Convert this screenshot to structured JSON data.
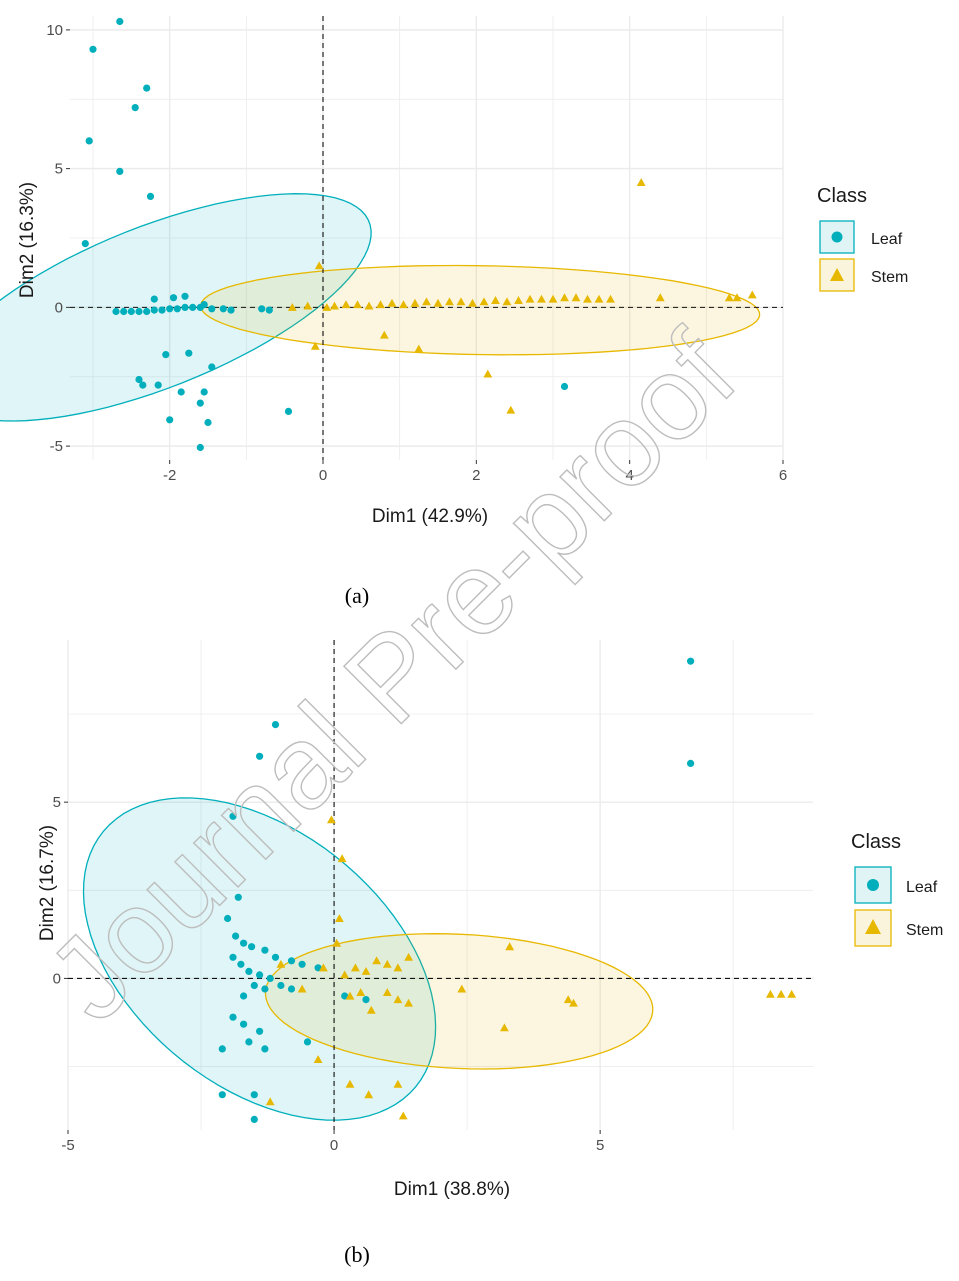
{
  "colors": {
    "leaf": "#00AFBB",
    "stem": "#E7B800",
    "grid": "#ebebeb",
    "axis_text": "#4d4d4d",
    "watermark": "#bdbdbd"
  },
  "watermark": "Journal Pre-proof",
  "legend_icons": {
    "leaf": "circle",
    "stem": "triangle"
  },
  "chart_data": [
    {
      "type": "scatter",
      "caption": "(a)",
      "xlabel": "Dim1 (42.9%)",
      "ylabel": "Dim2 (16.3%)",
      "xlim": [
        -3.3,
        6.0
      ],
      "ylim": [
        -5.5,
        10.5
      ],
      "xticks": [
        -2,
        0,
        2,
        4,
        6
      ],
      "yticks": [
        -5,
        0,
        5,
        10
      ],
      "grid": true,
      "legend_position": "right",
      "legend": {
        "title": "Class",
        "entries": [
          "Leaf",
          "Stem"
        ]
      },
      "series": [
        {
          "name": "Leaf",
          "marker": "circle",
          "ellipse": {
            "cx": -2.2,
            "cy": 0.0,
            "rx": 1.9,
            "ry": 4.6,
            "angle_deg": -30
          },
          "points": [
            [
              -2.65,
              10.3
            ],
            [
              -3.0,
              9.3
            ],
            [
              -2.3,
              7.9
            ],
            [
              -2.45,
              7.2
            ],
            [
              -3.05,
              6.0
            ],
            [
              -2.65,
              4.9
            ],
            [
              -2.25,
              4.0
            ],
            [
              -3.1,
              2.3
            ],
            [
              -2.7,
              -0.15
            ],
            [
              -2.6,
              -0.15
            ],
            [
              -2.5,
              -0.15
            ],
            [
              -2.4,
              -0.15
            ],
            [
              -2.3,
              -0.15
            ],
            [
              -2.2,
              -0.1
            ],
            [
              -2.1,
              -0.1
            ],
            [
              -2.0,
              -0.05
            ],
            [
              -1.9,
              -0.05
            ],
            [
              -1.8,
              0.0
            ],
            [
              -1.7,
              0.0
            ],
            [
              -1.6,
              0.0
            ],
            [
              -2.2,
              0.3
            ],
            [
              -1.95,
              0.35
            ],
            [
              -1.8,
              0.4
            ],
            [
              -1.55,
              0.1
            ],
            [
              -1.45,
              -0.05
            ],
            [
              -1.3,
              -0.05
            ],
            [
              -1.2,
              -0.1
            ],
            [
              -0.8,
              -0.05
            ],
            [
              -0.7,
              -0.1
            ],
            [
              -2.05,
              -1.7
            ],
            [
              -1.75,
              -1.65
            ],
            [
              -2.4,
              -2.6
            ],
            [
              -2.35,
              -2.8
            ],
            [
              -2.15,
              -2.8
            ],
            [
              -1.85,
              -3.05
            ],
            [
              -1.55,
              -3.05
            ],
            [
              -1.45,
              -2.15
            ],
            [
              -1.6,
              -3.45
            ],
            [
              -2.0,
              -4.05
            ],
            [
              -1.5,
              -4.15
            ],
            [
              -1.6,
              -5.05
            ],
            [
              -0.45,
              -3.75
            ],
            [
              3.15,
              -2.85
            ]
          ]
        },
        {
          "name": "Stem",
          "marker": "triangle",
          "ellipse": {
            "cx": 2.05,
            "cy": -0.1,
            "rx": 3.65,
            "ry": 1.6,
            "angle_deg": -3
          },
          "points": [
            [
              -0.05,
              1.5
            ],
            [
              -0.1,
              -1.4
            ],
            [
              -0.4,
              0.0
            ],
            [
              -0.2,
              0.05
            ],
            [
              0.05,
              0.0
            ],
            [
              0.15,
              0.05
            ],
            [
              0.3,
              0.1
            ],
            [
              0.45,
              0.1
            ],
            [
              0.6,
              0.05
            ],
            [
              0.75,
              0.1
            ],
            [
              0.9,
              0.15
            ],
            [
              1.05,
              0.1
            ],
            [
              1.2,
              0.15
            ],
            [
              1.35,
              0.2
            ],
            [
              1.5,
              0.15
            ],
            [
              1.65,
              0.2
            ],
            [
              1.8,
              0.2
            ],
            [
              1.95,
              0.15
            ],
            [
              2.1,
              0.2
            ],
            [
              2.25,
              0.25
            ],
            [
              2.4,
              0.2
            ],
            [
              2.55,
              0.25
            ],
            [
              2.7,
              0.3
            ],
            [
              2.85,
              0.3
            ],
            [
              3.0,
              0.3
            ],
            [
              3.15,
              0.35
            ],
            [
              3.3,
              0.35
            ],
            [
              3.45,
              0.3
            ],
            [
              3.6,
              0.3
            ],
            [
              3.75,
              0.3
            ],
            [
              4.4,
              0.35
            ],
            [
              5.3,
              0.35
            ],
            [
              5.4,
              0.35
            ],
            [
              5.6,
              0.45
            ],
            [
              4.15,
              4.5
            ],
            [
              0.8,
              -1.0
            ],
            [
              1.25,
              -1.5
            ],
            [
              2.15,
              -2.4
            ],
            [
              2.45,
              -3.7
            ]
          ]
        }
      ]
    },
    {
      "type": "scatter",
      "caption": "(b)",
      "xlabel": "Dim1 (38.8%)",
      "ylabel": "Dim2 (16.7%)",
      "xlim": [
        -5.0,
        9.0
      ],
      "ylim": [
        -4.3,
        9.6
      ],
      "xticks": [
        -5,
        0,
        5
      ],
      "yticks": [
        0,
        5
      ],
      "grid": true,
      "legend_position": "right",
      "legend": {
        "title": "Class",
        "entries": [
          "Leaf",
          "Stem"
        ]
      },
      "series": [
        {
          "name": "Leaf",
          "marker": "circle",
          "ellipse": {
            "cx": -1.4,
            "cy": 0.55,
            "rx": 2.8,
            "ry": 4.9,
            "angle_deg": 26
          },
          "points": [
            [
              6.7,
              9.0
            ],
            [
              6.7,
              6.1
            ],
            [
              -1.1,
              7.2
            ],
            [
              -1.4,
              6.3
            ],
            [
              -1.9,
              4.6
            ],
            [
              -1.8,
              2.3
            ],
            [
              -2.0,
              1.7
            ],
            [
              -1.85,
              1.2
            ],
            [
              -1.7,
              1.0
            ],
            [
              -1.55,
              0.9
            ],
            [
              -1.3,
              0.8
            ],
            [
              -1.1,
              0.6
            ],
            [
              -0.8,
              0.5
            ],
            [
              -0.6,
              0.4
            ],
            [
              -0.3,
              0.3
            ],
            [
              -1.9,
              0.6
            ],
            [
              -1.75,
              0.4
            ],
            [
              -1.6,
              0.2
            ],
            [
              -1.4,
              0.1
            ],
            [
              -1.2,
              0.0
            ],
            [
              -1.0,
              -0.2
            ],
            [
              -0.8,
              -0.3
            ],
            [
              -1.5,
              -0.2
            ],
            [
              -1.3,
              -0.3
            ],
            [
              -1.7,
              -0.5
            ],
            [
              -1.9,
              -1.1
            ],
            [
              -1.7,
              -1.3
            ],
            [
              -1.4,
              -1.5
            ],
            [
              -1.6,
              -1.8
            ],
            [
              -1.3,
              -2.0
            ],
            [
              -2.1,
              -2.0
            ],
            [
              -0.5,
              -1.8
            ],
            [
              0.2,
              -0.5
            ],
            [
              0.6,
              -0.6
            ],
            [
              -2.1,
              -3.3
            ],
            [
              -1.5,
              -3.3
            ],
            [
              -1.5,
              -4.0
            ]
          ]
        },
        {
          "name": "Stem",
          "marker": "triangle",
          "ellipse": {
            "cx": 2.35,
            "cy": -0.65,
            "rx": 3.65,
            "ry": 1.9,
            "angle_deg": -5
          },
          "points": [
            [
              -0.05,
              4.5
            ],
            [
              0.15,
              3.4
            ],
            [
              0.1,
              1.7
            ],
            [
              0.05,
              1.0
            ],
            [
              -0.2,
              0.3
            ],
            [
              0.2,
              0.1
            ],
            [
              0.4,
              0.3
            ],
            [
              0.6,
              0.2
            ],
            [
              0.8,
              0.5
            ],
            [
              1.0,
              0.4
            ],
            [
              1.2,
              0.3
            ],
            [
              1.4,
              0.6
            ],
            [
              1.0,
              -0.4
            ],
            [
              1.2,
              -0.6
            ],
            [
              1.4,
              -0.7
            ],
            [
              0.5,
              -0.4
            ],
            [
              0.3,
              -0.5
            ],
            [
              0.7,
              -0.9
            ],
            [
              -0.6,
              -0.3
            ],
            [
              -1.0,
              0.4
            ],
            [
              3.3,
              0.9
            ],
            [
              2.4,
              -0.3
            ],
            [
              3.2,
              -1.4
            ],
            [
              4.5,
              -0.7
            ],
            [
              4.4,
              -0.6
            ],
            [
              8.2,
              -0.45
            ],
            [
              8.4,
              -0.45
            ],
            [
              8.6,
              -0.45
            ],
            [
              -0.3,
              -2.3
            ],
            [
              0.3,
              -3.0
            ],
            [
              0.65,
              -3.3
            ],
            [
              1.2,
              -3.0
            ],
            [
              1.3,
              -3.9
            ],
            [
              -1.2,
              -3.5
            ]
          ]
        }
      ]
    }
  ]
}
